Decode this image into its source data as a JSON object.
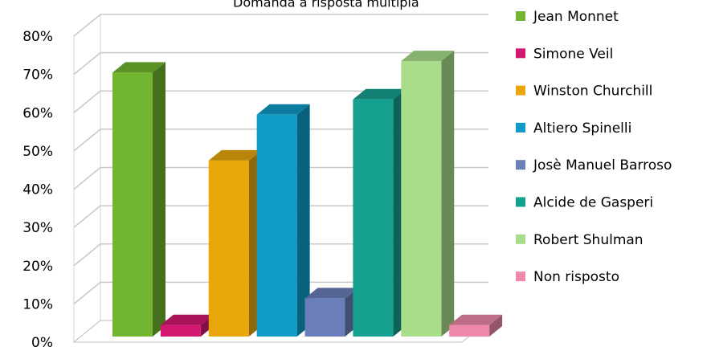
{
  "chart_data": {
    "type": "bar",
    "title": "Domanda a risposta multipla",
    "categories": [
      "Jean Monnet",
      "Simone Veil",
      "Winston Churchill",
      "Altiero Spinelli",
      "Josè Manuel Barroso",
      "Alcide de Gasperi",
      "Robert Shulman",
      "Non risposto"
    ],
    "values": [
      69,
      3,
      46,
      58,
      10,
      62,
      72,
      3
    ],
    "colors": [
      "#72b531",
      "#d21870",
      "#e7a60a",
      "#0f9cc9",
      "#6a7fba",
      "#16a08f",
      "#a9dd8a",
      "#ee88ab"
    ],
    "y_ticks": [
      "0%",
      "10%",
      "20%",
      "30%",
      "40%",
      "50%",
      "60%",
      "70%",
      "80%"
    ],
    "ylim": [
      0,
      80
    ],
    "unit": "%",
    "grid": true,
    "legend_position": "right",
    "style": "3d-column"
  }
}
